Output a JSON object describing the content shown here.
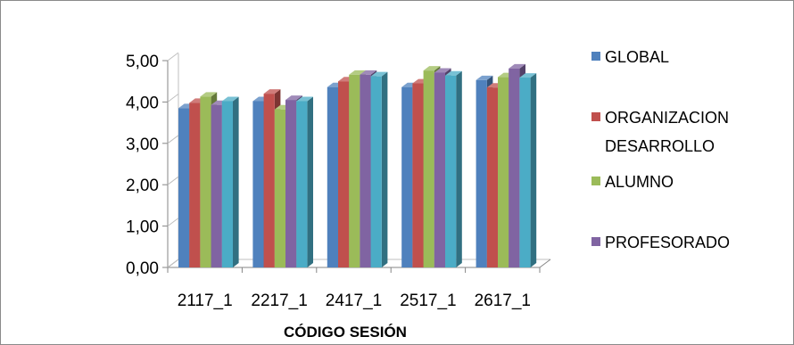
{
  "chart_data": {
    "type": "bar",
    "style": "3d-clustered-column",
    "xlabel": "CÓDIGO SESIÓN",
    "ylabel": "",
    "ylim": [
      0,
      5
    ],
    "yticks": [
      "0,00",
      "1,00",
      "2,00",
      "3,00",
      "4,00",
      "5,00"
    ],
    "categories": [
      "2117_1",
      "2217_1",
      "2417_1",
      "2517_1",
      "2617_1"
    ],
    "series": [
      {
        "name": "GLOBAL",
        "color": "#4f81bd",
        "values": [
          3.85,
          4.02,
          4.36,
          4.36,
          4.53
        ]
      },
      {
        "name": "ORGANIZACION DESARROLLO",
        "color": "#c0504d",
        "values": [
          3.98,
          4.2,
          4.5,
          4.45,
          4.35
        ]
      },
      {
        "name": "ALUMNO",
        "color": "#9bbb59",
        "values": [
          4.13,
          3.82,
          4.66,
          4.76,
          4.6
        ]
      },
      {
        "name": "PROFESORADO",
        "color": "#8064a2",
        "values": [
          3.93,
          4.05,
          4.66,
          4.71,
          4.81
        ]
      },
      {
        "name": "",
        "color": "#4bacc6",
        "values": [
          4.02,
          4.02,
          4.62,
          4.64,
          4.59
        ]
      }
    ],
    "legend": {
      "position": "right",
      "entries": [
        "GLOBAL",
        "ORGANIZACION",
        "DESARROLLO",
        "ALUMNO",
        "PROFESORADO"
      ]
    },
    "grid": false
  }
}
